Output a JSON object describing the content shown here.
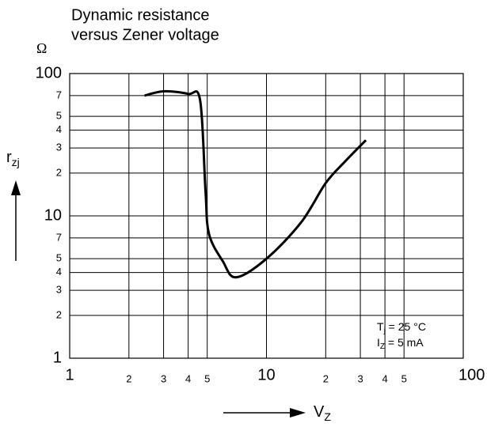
{
  "chart_data": {
    "type": "line",
    "title_lines": [
      "Dynamic resistance",
      "versus Zener voltage"
    ],
    "y_unit": "Ω",
    "y_label": {
      "text": "r",
      "sub": "zj"
    },
    "x_label": {
      "text": "V",
      "sub": "Z"
    },
    "annotations": [
      {
        "text": "T",
        "sub": "j",
        "rest": " = 25 °C"
      },
      {
        "text": "I",
        "sub": "Z",
        "rest": " = 5 mA"
      }
    ],
    "log_x": true,
    "log_y": true,
    "grid": true,
    "xlim": [
      1,
      100
    ],
    "ylim": [
      1,
      100
    ],
    "xticks": [
      1,
      2,
      3,
      4,
      5,
      10,
      {
        "value": 20,
        "label": "2"
      },
      {
        "value": 30,
        "label": "3"
      },
      {
        "value": 40,
        "label": "4"
      },
      {
        "value": 50,
        "label": "5"
      },
      {
        "value": 100,
        "label": "100 V"
      }
    ],
    "yticks": [
      1,
      2,
      3,
      4,
      5,
      7,
      10,
      {
        "value": 20,
        "label": "2"
      },
      {
        "value": 30,
        "label": "3"
      },
      {
        "value": 40,
        "label": "4"
      },
      {
        "value": 50,
        "label": "5"
      },
      {
        "value": 70,
        "label": "7"
      },
      100
    ],
    "series": [
      {
        "color": "#000000",
        "x": [
          2.4,
          3,
          4,
          4.6,
          4.9,
          5.1,
          6,
          7,
          10,
          15,
          20,
          25,
          32
        ],
        "values": [
          70,
          75,
          72,
          65,
          15,
          7.5,
          4.8,
          3.7,
          5,
          9,
          17,
          24,
          34
        ]
      }
    ]
  }
}
